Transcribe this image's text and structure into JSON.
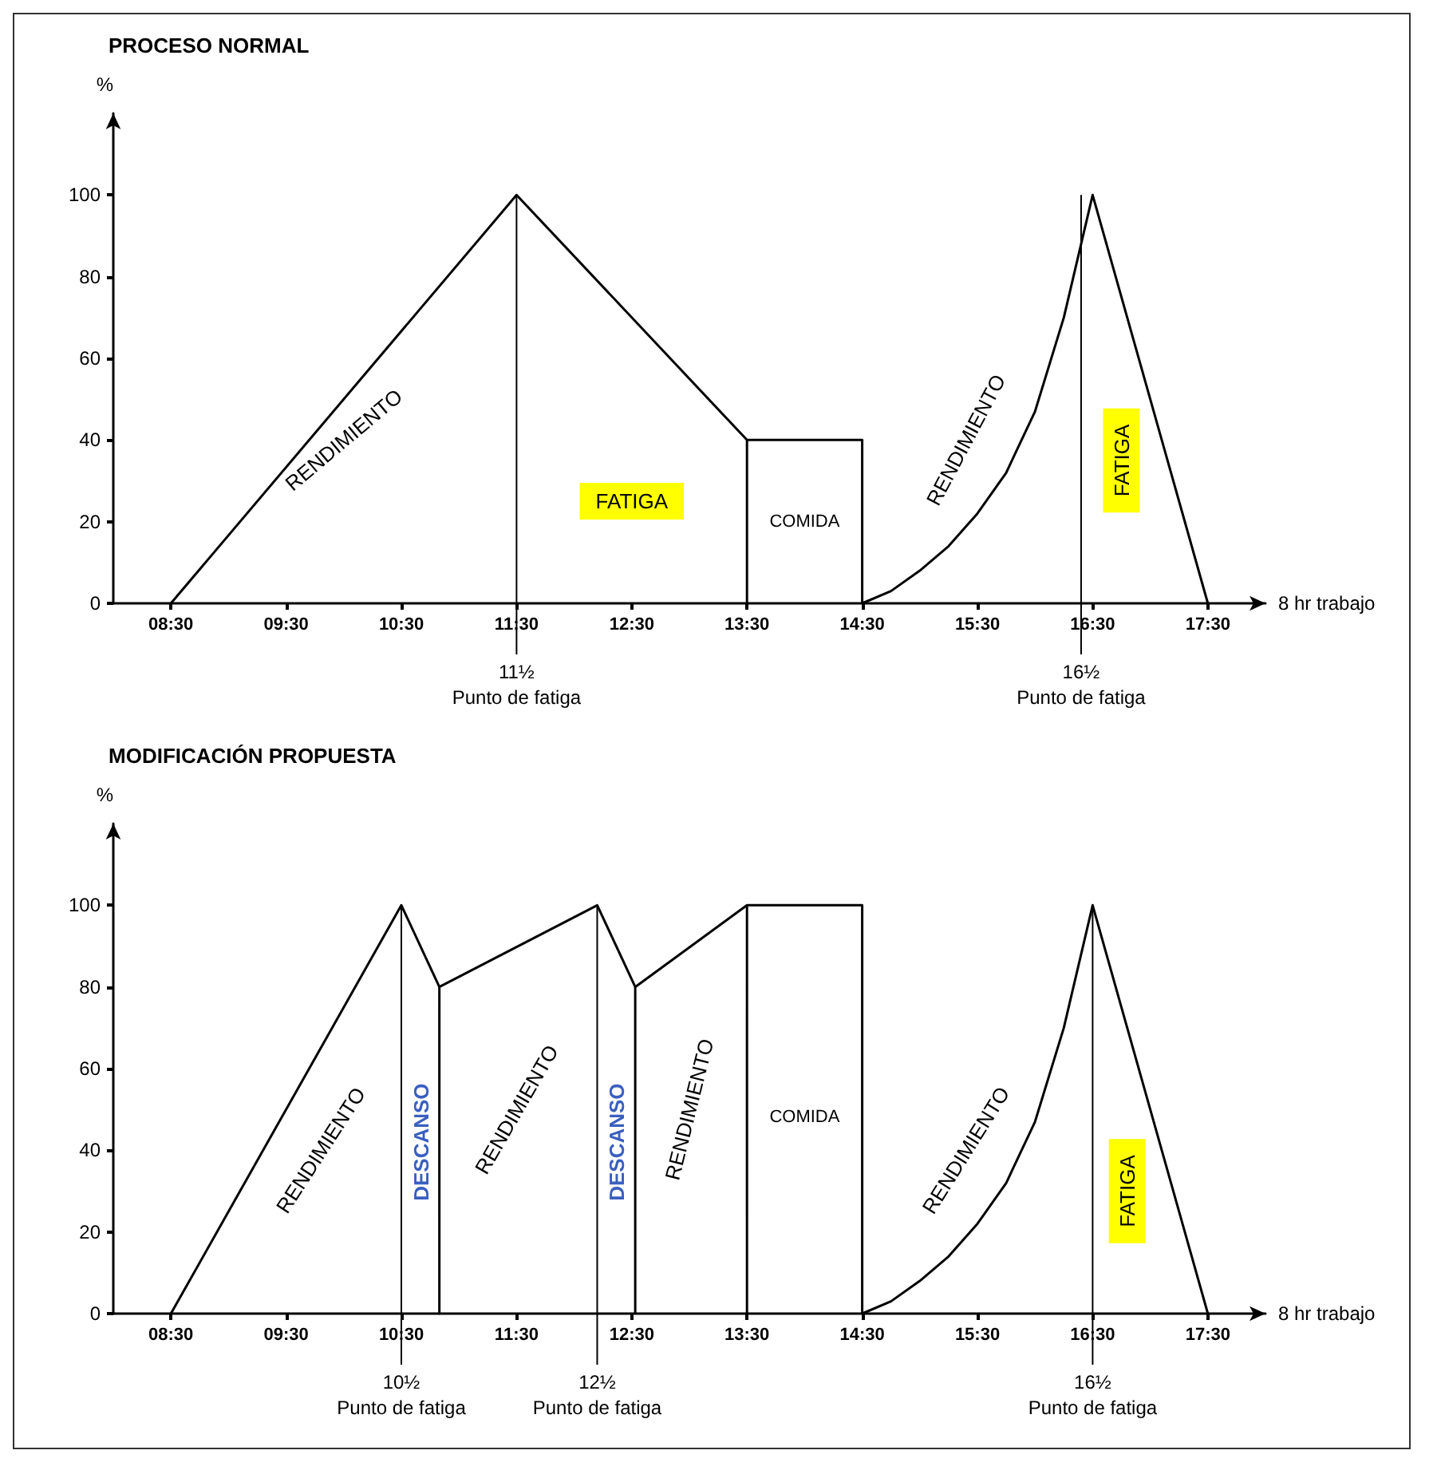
{
  "chart_data": [
    {
      "type": "line",
      "title": "PROCESO NORMAL",
      "xlabel": "8 hr trabajo",
      "ylabel": "%",
      "color": "#000000",
      "marker": "none",
      "line_style": "solid",
      "grid": false,
      "x": [
        8.5,
        11.5,
        13.5,
        13.5,
        13.5,
        14.5,
        14.5,
        14.75,
        15,
        15.25,
        15.5,
        15.75,
        16,
        16.25,
        16.5,
        17.5
      ],
      "values": [
        0,
        100,
        40,
        0,
        40,
        40,
        0,
        3,
        8,
        14,
        22,
        32,
        47,
        70,
        100,
        0
      ],
      "xlim": [
        8,
        18
      ],
      "ylim": [
        0,
        120
      ],
      "xticks": [
        {
          "value": 8.5,
          "label": "08:30"
        },
        {
          "value": 9.5,
          "label": "09:30"
        },
        {
          "value": 10.5,
          "label": "10:30"
        },
        {
          "value": 11.5,
          "label": "11:30"
        },
        {
          "value": 12.5,
          "label": "12:30"
        },
        {
          "value": 13.5,
          "label": "13:30"
        },
        {
          "value": 14.5,
          "label": "14:30"
        },
        {
          "value": 15.5,
          "label": "15:30"
        },
        {
          "value": 16.5,
          "label": "16:30"
        },
        {
          "value": 17.5,
          "label": "17:30"
        }
      ],
      "yticks": [
        0,
        20,
        40,
        60,
        80,
        100
      ],
      "ref_lines": [
        {
          "axis": "x",
          "value": 11.5,
          "label": "11½\nPunto de fatiga"
        },
        {
          "axis": "x",
          "value": 16.4,
          "label": "16½\nPunto de fatiga"
        }
      ],
      "annotations": [
        "RENDIMIENTO",
        "FATIGA",
        "COMIDA",
        "RENDIMIENTO",
        "FATIGA"
      ]
    },
    {
      "type": "line",
      "title": "MODIFICACIÓN PROPUESTA",
      "xlabel": "8 hr trabajo",
      "ylabel": "%",
      "color": "#000000",
      "marker": "none",
      "line_style": "solid",
      "grid": false,
      "x": [
        8.5,
        10.5,
        10.83,
        10.83,
        10.83,
        12.2,
        12.53,
        12.53,
        12.53,
        13.5,
        13.5,
        13.5,
        14.5,
        14.5,
        14.75,
        15,
        15.25,
        15.5,
        15.75,
        16,
        16.25,
        16.5,
        17.5
      ],
      "values": [
        0,
        100,
        80,
        0,
        80,
        100,
        80,
        0,
        80,
        100,
        0,
        100,
        100,
        0,
        3,
        8,
        14,
        22,
        32,
        47,
        70,
        100,
        0
      ],
      "xlim": [
        8,
        18
      ],
      "ylim": [
        0,
        120
      ],
      "xticks": [
        {
          "value": 8.5,
          "label": "08:30"
        },
        {
          "value": 9.5,
          "label": "09:30"
        },
        {
          "value": 10.5,
          "label": "10:30"
        },
        {
          "value": 11.5,
          "label": "11:30"
        },
        {
          "value": 12.5,
          "label": "12:30"
        },
        {
          "value": 13.5,
          "label": "13:30"
        },
        {
          "value": 14.5,
          "label": "14:30"
        },
        {
          "value": 15.5,
          "label": "15:30"
        },
        {
          "value": 16.5,
          "label": "16:30"
        },
        {
          "value": 17.5,
          "label": "17:30"
        }
      ],
      "yticks": [
        0,
        20,
        40,
        60,
        80,
        100
      ],
      "ref_lines": [
        {
          "axis": "x",
          "value": 10.5,
          "label": "10½\nPunto de fatiga"
        },
        {
          "axis": "x",
          "value": 12.2,
          "label": "12½\nPunto de fatiga"
        },
        {
          "axis": "x",
          "value": 16.5,
          "label": "16½\nPunto de fatiga"
        }
      ],
      "annotations": [
        "RENDIMIENTO",
        "DESCANSO",
        "RENDIMIENTO",
        "DESCANSO",
        "RENDIMIENTO",
        "COMIDA",
        "RENDIMIENTO",
        "FATIGA"
      ]
    }
  ]
}
